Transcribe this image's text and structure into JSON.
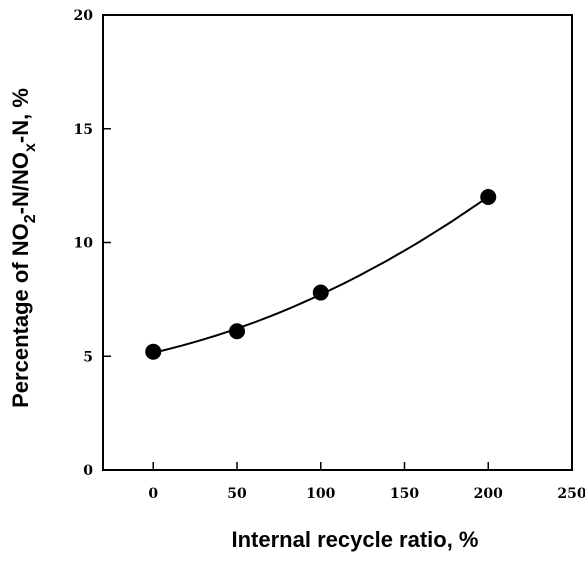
{
  "chart_data": {
    "type": "scatter",
    "title": "",
    "xlabel": "Internal recycle ratio, %",
    "ylabel": {
      "prefix": "Percentage of NO",
      "sub1": "2",
      "middle": "-N/NO",
      "sub2": "x",
      "suffix": "-N, %"
    },
    "xlim": [
      -30,
      250
    ],
    "ylim": [
      0,
      20
    ],
    "x_ticks": [
      0,
      50,
      100,
      150,
      200,
      250
    ],
    "y_ticks": [
      0,
      5,
      10,
      15,
      20
    ],
    "grid": false,
    "legend": "none",
    "series": [
      {
        "x": [
          0,
          50,
          100,
          200
        ],
        "y": [
          5.2,
          6.1,
          7.8,
          12.0
        ],
        "marker": "filled-circle",
        "fit_curve": true
      }
    ],
    "colors": {
      "marker": "#000000",
      "line": "#000000",
      "axes": "#000000"
    }
  }
}
